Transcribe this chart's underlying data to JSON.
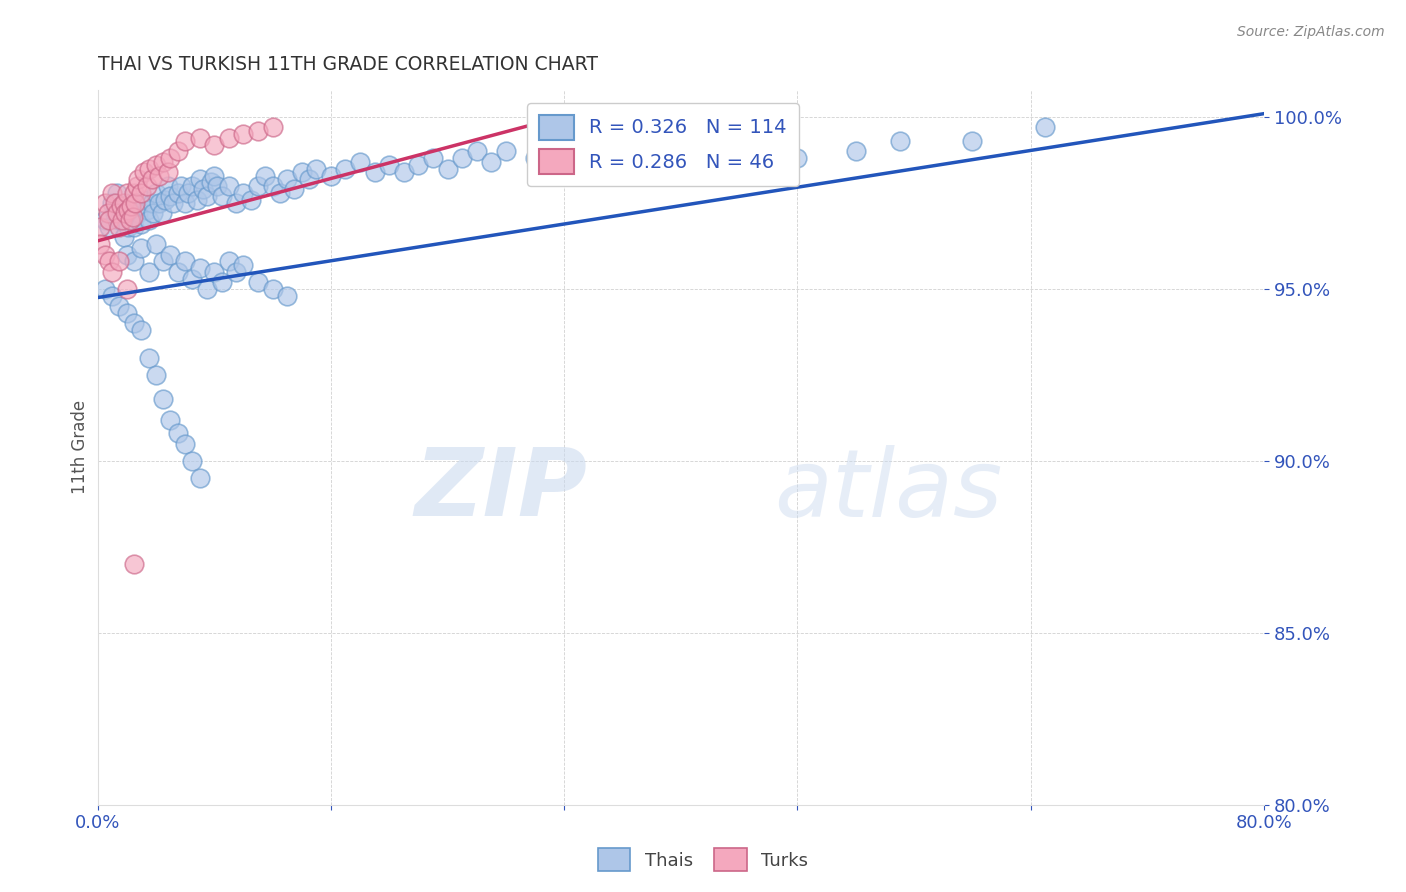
{
  "title": "THAI VS TURKISH 11TH GRADE CORRELATION CHART",
  "source": "Source: ZipAtlas.com",
  "ylabel": "11th Grade",
  "xlim": [
    0.0,
    0.8
  ],
  "ylim": [
    0.8,
    1.008
  ],
  "ytick_values": [
    0.8,
    0.85,
    0.9,
    0.95,
    1.0
  ],
  "ytick_labels": [
    "80.0%",
    "85.0%",
    "90.0%",
    "95.0%",
    "100.0%"
  ],
  "xtick_values": [
    0.0,
    0.16,
    0.32,
    0.48,
    0.64,
    0.8
  ],
  "xtick_labels": [
    "0.0%",
    "",
    "",
    "",
    "",
    "80.0%"
  ],
  "blue_fill": "#aec6e8",
  "blue_edge": "#6699cc",
  "pink_fill": "#f4a8be",
  "pink_edge": "#cc6688",
  "blue_line": "#2255bb",
  "pink_line": "#cc3366",
  "legend_color": "#3355bb",
  "r_blue": 0.326,
  "n_blue": 114,
  "r_pink": 0.286,
  "n_pink": 46,
  "blue_trend_x": [
    0.0,
    0.8
  ],
  "blue_trend_y": [
    0.9475,
    1.001
  ],
  "pink_trend_x": [
    0.0,
    0.3
  ],
  "pink_trend_y": [
    0.964,
    0.998
  ],
  "blue_x": [
    0.005,
    0.008,
    0.01,
    0.012,
    0.013,
    0.015,
    0.016,
    0.018,
    0.02,
    0.021,
    0.022,
    0.024,
    0.025,
    0.027,
    0.028,
    0.03,
    0.032,
    0.034,
    0.035,
    0.037,
    0.038,
    0.04,
    0.042,
    0.044,
    0.046,
    0.048,
    0.05,
    0.052,
    0.055,
    0.057,
    0.06,
    0.062,
    0.065,
    0.068,
    0.07,
    0.072,
    0.075,
    0.078,
    0.08,
    0.082,
    0.085,
    0.09,
    0.095,
    0.1,
    0.105,
    0.11,
    0.115,
    0.12,
    0.125,
    0.13,
    0.135,
    0.14,
    0.145,
    0.15,
    0.16,
    0.17,
    0.18,
    0.19,
    0.2,
    0.21,
    0.22,
    0.23,
    0.24,
    0.25,
    0.26,
    0.27,
    0.28,
    0.3,
    0.32,
    0.34,
    0.36,
    0.38,
    0.4,
    0.42,
    0.45,
    0.48,
    0.52,
    0.55,
    0.6,
    0.65,
    0.02,
    0.025,
    0.03,
    0.035,
    0.04,
    0.045,
    0.05,
    0.055,
    0.06,
    0.065,
    0.07,
    0.075,
    0.08,
    0.085,
    0.09,
    0.095,
    0.1,
    0.11,
    0.12,
    0.13,
    0.005,
    0.01,
    0.015,
    0.02,
    0.025,
    0.03,
    0.035,
    0.04,
    0.045,
    0.05,
    0.055,
    0.06,
    0.065,
    0.07
  ],
  "blue_y": [
    0.97,
    0.968,
    0.975,
    0.972,
    0.978,
    0.97,
    0.973,
    0.965,
    0.972,
    0.968,
    0.975,
    0.97,
    0.968,
    0.974,
    0.972,
    0.969,
    0.976,
    0.973,
    0.97,
    0.975,
    0.972,
    0.978,
    0.975,
    0.972,
    0.976,
    0.98,
    0.977,
    0.975,
    0.978,
    0.98,
    0.975,
    0.978,
    0.98,
    0.976,
    0.982,
    0.979,
    0.977,
    0.981,
    0.983,
    0.98,
    0.977,
    0.98,
    0.975,
    0.978,
    0.976,
    0.98,
    0.983,
    0.98,
    0.978,
    0.982,
    0.979,
    0.984,
    0.982,
    0.985,
    0.983,
    0.985,
    0.987,
    0.984,
    0.986,
    0.984,
    0.986,
    0.988,
    0.985,
    0.988,
    0.99,
    0.987,
    0.99,
    0.988,
    0.991,
    0.989,
    0.993,
    0.991,
    0.994,
    0.992,
    0.985,
    0.988,
    0.99,
    0.993,
    0.993,
    0.997,
    0.96,
    0.958,
    0.962,
    0.955,
    0.963,
    0.958,
    0.96,
    0.955,
    0.958,
    0.953,
    0.956,
    0.95,
    0.955,
    0.952,
    0.958,
    0.955,
    0.957,
    0.952,
    0.95,
    0.948,
    0.95,
    0.948,
    0.945,
    0.943,
    0.94,
    0.938,
    0.93,
    0.925,
    0.918,
    0.912,
    0.908,
    0.905,
    0.9,
    0.895
  ],
  "pink_x": [
    0.002,
    0.005,
    0.007,
    0.008,
    0.01,
    0.012,
    0.013,
    0.015,
    0.016,
    0.017,
    0.018,
    0.019,
    0.02,
    0.021,
    0.022,
    0.023,
    0.024,
    0.025,
    0.026,
    0.027,
    0.028,
    0.03,
    0.032,
    0.034,
    0.035,
    0.037,
    0.04,
    0.042,
    0.045,
    0.048,
    0.05,
    0.055,
    0.06,
    0.07,
    0.08,
    0.09,
    0.1,
    0.11,
    0.12,
    0.002,
    0.005,
    0.008,
    0.01,
    0.015,
    0.02,
    0.025
  ],
  "pink_y": [
    0.968,
    0.975,
    0.972,
    0.97,
    0.978,
    0.975,
    0.972,
    0.968,
    0.974,
    0.97,
    0.975,
    0.972,
    0.978,
    0.973,
    0.97,
    0.974,
    0.971,
    0.978,
    0.975,
    0.98,
    0.982,
    0.978,
    0.984,
    0.98,
    0.985,
    0.982,
    0.986,
    0.983,
    0.987,
    0.984,
    0.988,
    0.99,
    0.993,
    0.994,
    0.992,
    0.994,
    0.995,
    0.996,
    0.997,
    0.963,
    0.96,
    0.958,
    0.955,
    0.958,
    0.95,
    0.87
  ],
  "watermark_zip": "ZIP",
  "watermark_atlas": "atlas",
  "legend_label_blue": "Thais",
  "legend_label_pink": "Turks"
}
